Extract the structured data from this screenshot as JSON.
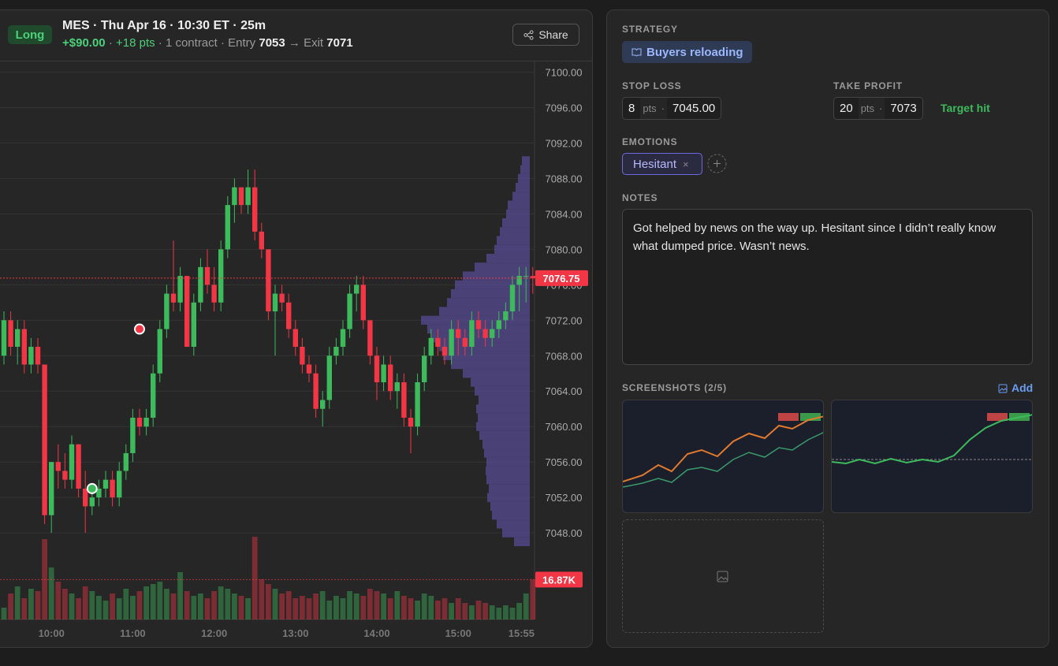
{
  "header": {
    "side": "Long",
    "title": "MES · Thu Apr 16 · 10:30 ET · 25m",
    "pnl": "+$90.00",
    "points": "+18 pts",
    "contracts": "1 contract",
    "separator": "·",
    "entry_label": "Entry",
    "entry": 7053,
    "exit_label": "→ Exit",
    "exit": 7071,
    "share": "Share"
  },
  "chart_data": {
    "type": "candlestick",
    "categories": [
      null,
      null,
      null,
      null,
      null,
      null,
      null,
      "10:00",
      null,
      null,
      null,
      null,
      null,
      null,
      null,
      null,
      null,
      null,
      null,
      "11:00",
      null,
      null,
      null,
      null,
      null,
      null,
      null,
      null,
      null,
      null,
      null,
      "12:00",
      null,
      null,
      null,
      null,
      null,
      null,
      null,
      null,
      null,
      null,
      null,
      "13:00",
      null,
      null,
      null,
      null,
      null,
      null,
      null,
      null,
      null,
      null,
      null,
      "14:00",
      null,
      null,
      null,
      null,
      null,
      null,
      null,
      null,
      null,
      null,
      null,
      "15:00",
      null,
      null,
      null,
      null,
      null,
      null,
      null,
      null,
      null,
      null,
      "15:55"
    ],
    "candles": [
      [
        7068,
        7073,
        7067,
        7072
      ],
      [
        7072,
        7073,
        7068,
        7069
      ],
      [
        7069,
        7072,
        7067,
        7071
      ],
      [
        7071,
        7072,
        7066,
        7067
      ],
      [
        7067,
        7070,
        7066,
        7069
      ],
      [
        7069,
        7070,
        7066,
        7067
      ],
      [
        7067,
        7067,
        7049,
        7050
      ],
      [
        7050,
        7056,
        7048,
        7056
      ],
      [
        7056,
        7058,
        7053,
        7055
      ],
      [
        7055,
        7057,
        7053,
        7054
      ],
      [
        7054,
        7059,
        7053,
        7058
      ],
      [
        7058,
        7058,
        7052,
        7053
      ],
      [
        7053,
        7055,
        7048,
        7051
      ],
      [
        7051,
        7053,
        7050,
        7052
      ],
      [
        7052,
        7054,
        7051,
        7053
      ],
      [
        7053,
        7055,
        7052,
        7054
      ],
      [
        7054,
        7055,
        7051,
        7052
      ],
      [
        7052,
        7056,
        7051,
        7055
      ],
      [
        7055,
        7058,
        7054,
        7057
      ],
      [
        7057,
        7062,
        7056,
        7061
      ],
      [
        7061,
        7062,
        7059,
        7060
      ],
      [
        7060,
        7062,
        7059,
        7061
      ],
      [
        7061,
        7067,
        7060,
        7066
      ],
      [
        7066,
        7072,
        7065,
        7071
      ],
      [
        7071,
        7076,
        7070,
        7075
      ],
      [
        7075,
        7081,
        7073,
        7074
      ],
      [
        7074,
        7078,
        7073,
        7077
      ],
      [
        7077,
        7077,
        7069,
        7069
      ],
      [
        7069,
        7075,
        7068,
        7074
      ],
      [
        7074,
        7079,
        7073,
        7078
      ],
      [
        7078,
        7080,
        7075,
        7076
      ],
      [
        7076,
        7078,
        7073,
        7074
      ],
      [
        7074,
        7081,
        7073,
        7080
      ],
      [
        7080,
        7086,
        7079,
        7085
      ],
      [
        7085,
        7088,
        7083,
        7087
      ],
      [
        7087,
        7087,
        7084,
        7085
      ],
      [
        7085,
        7089,
        7084,
        7087
      ],
      [
        7087,
        7089,
        7081,
        7082
      ],
      [
        7082,
        7083,
        7079,
        7080
      ],
      [
        7080,
        7080,
        7072,
        7073
      ],
      [
        7073,
        7076,
        7068,
        7075
      ],
      [
        7075,
        7076,
        7073,
        7074
      ],
      [
        7074,
        7075,
        7070,
        7071
      ],
      [
        7071,
        7072,
        7068,
        7069
      ],
      [
        7069,
        7070,
        7066,
        7067
      ],
      [
        7067,
        7068,
        7065,
        7066
      ],
      [
        7066,
        7067,
        7061,
        7062
      ],
      [
        7062,
        7064,
        7060,
        7063
      ],
      [
        7063,
        7069,
        7062,
        7068
      ],
      [
        7068,
        7070,
        7067,
        7069
      ],
      [
        7069,
        7072,
        7068,
        7071
      ],
      [
        7071,
        7076,
        7070,
        7075
      ],
      [
        7075,
        7077,
        7073,
        7076
      ],
      [
        7076,
        7077,
        7071,
        7072
      ],
      [
        7072,
        7072,
        7067,
        7068
      ],
      [
        7068,
        7069,
        7063,
        7065
      ],
      [
        7065,
        7068,
        7064,
        7067
      ],
      [
        7067,
        7068,
        7063,
        7064
      ],
      [
        7064,
        7066,
        7062,
        7065
      ],
      [
        7065,
        7066,
        7060,
        7061
      ],
      [
        7061,
        7062,
        7057,
        7060
      ],
      [
        7060,
        7066,
        7059,
        7065
      ],
      [
        7065,
        7069,
        7064,
        7068
      ],
      [
        7068,
        7071,
        7067,
        7070
      ],
      [
        7070,
        7071,
        7068,
        7069
      ],
      [
        7069,
        7070,
        7067,
        7068
      ],
      [
        7068,
        7072,
        7067,
        7071
      ],
      [
        7071,
        7072,
        7068,
        7070
      ],
      [
        7070,
        7071,
        7068,
        7069
      ],
      [
        7069,
        7073,
        7068,
        7072
      ],
      [
        7072,
        7073,
        7070,
        7071
      ],
      [
        7071,
        7072,
        7069,
        7070
      ],
      [
        7070,
        7072,
        7069,
        7071
      ],
      [
        7071,
        7073,
        7070,
        7072
      ],
      [
        7072,
        7074,
        7071,
        7073
      ],
      [
        7073,
        7077,
        7072,
        7076
      ],
      [
        7076,
        7078,
        7073,
        7077
      ],
      [
        7077,
        7078,
        7074,
        7077
      ],
      [
        7077,
        7078,
        7075,
        7076.75
      ]
    ],
    "up_color": "#3dbb5c",
    "down_color": "#f23645",
    "volume": [
      5,
      11,
      14,
      9,
      13,
      12,
      34,
      22,
      16,
      13,
      11,
      9,
      14,
      12,
      10,
      8,
      11,
      9,
      13,
      10,
      12,
      14,
      15,
      16,
      13,
      11,
      20,
      12,
      10,
      11,
      9,
      12,
      14,
      13,
      11,
      10,
      9,
      35,
      17,
      15,
      13,
      11,
      12,
      9,
      10,
      9,
      11,
      12,
      8,
      10,
      9,
      12,
      11,
      10,
      13,
      12,
      11,
      9,
      12,
      10,
      9,
      8,
      11,
      10,
      8,
      9,
      7,
      9,
      7,
      6,
      8,
      7,
      6,
      5,
      6,
      5,
      7,
      11,
      16.87
    ],
    "volume_lim": [
      0,
      40
    ],
    "last_volume_label": "16.87K",
    "volume_profile": {
      "color": "#5a4f9a",
      "prices": [
        7090,
        7089,
        7088,
        7087,
        7086,
        7085,
        7084,
        7083,
        7082,
        7081,
        7080,
        7079,
        7078,
        7077,
        7076,
        7075,
        7074,
        7073,
        7072,
        7071,
        7070,
        7069,
        7068,
        7067,
        7066,
        7065,
        7064,
        7063,
        7062,
        7061,
        7060,
        7059,
        7058,
        7057,
        7056,
        7055,
        7054,
        7053,
        7052,
        7051,
        7050,
        7049,
        7048,
        7047
      ],
      "values": [
        10,
        12,
        15,
        18,
        22,
        28,
        30,
        35,
        38,
        42,
        45,
        55,
        70,
        85,
        95,
        100,
        105,
        115,
        138,
        130,
        125,
        115,
        110,
        100,
        85,
        75,
        70,
        65,
        68,
        66,
        68,
        64,
        60,
        58,
        55,
        56,
        55,
        52,
        54,
        50,
        48,
        42,
        35,
        20
      ]
    },
    "entry_candle": 13,
    "exit_candle": 20,
    "ylim": [
      7046.5,
      7101.2
    ],
    "yticks": [
      {
        "value": 7100,
        "label": "7100.00"
      },
      {
        "value": 7096,
        "label": "7096.00"
      },
      {
        "value": 7092,
        "label": "7092.00"
      },
      {
        "value": 7088,
        "label": "7088.00"
      },
      {
        "value": 7084,
        "label": "7084.00"
      },
      {
        "value": 7080,
        "label": "7080.00"
      },
      {
        "value": 7076,
        "label": "7076.00"
      },
      {
        "value": 7072,
        "label": "7072.00"
      },
      {
        "value": 7068,
        "label": "7068.00"
      },
      {
        "value": 7064,
        "label": "7064.00"
      },
      {
        "value": 7060,
        "label": "7060.00"
      },
      {
        "value": 7056,
        "label": "7056.00"
      },
      {
        "value": 7052,
        "label": "7052.00"
      },
      {
        "value": 7048,
        "label": "7048.00"
      }
    ],
    "grid": true
  },
  "panel": {
    "strategy_label": "STRATEGY",
    "strategy": "Buyers reloading",
    "stop_loss": {
      "label": "STOP LOSS",
      "points": 8,
      "unit": "pts",
      "separator": "·",
      "price": "7045.00"
    },
    "take_profit": {
      "label": "TAKE PROFIT",
      "points": 20,
      "unit": "pts",
      "separator": "·",
      "price": 7073,
      "status": "Target hit"
    },
    "emotions_label": "EMOTIONS",
    "emotions": [
      {
        "name": "Hesitant",
        "remove": "×"
      }
    ],
    "notes_label": "NOTES",
    "notes": "Got helped by news on the way up. Hesitant since I didn’t really know what dumped price. Wasn’t news.",
    "screenshots_label": "SCREENSHOTS (2/5)",
    "add": "Add"
  }
}
